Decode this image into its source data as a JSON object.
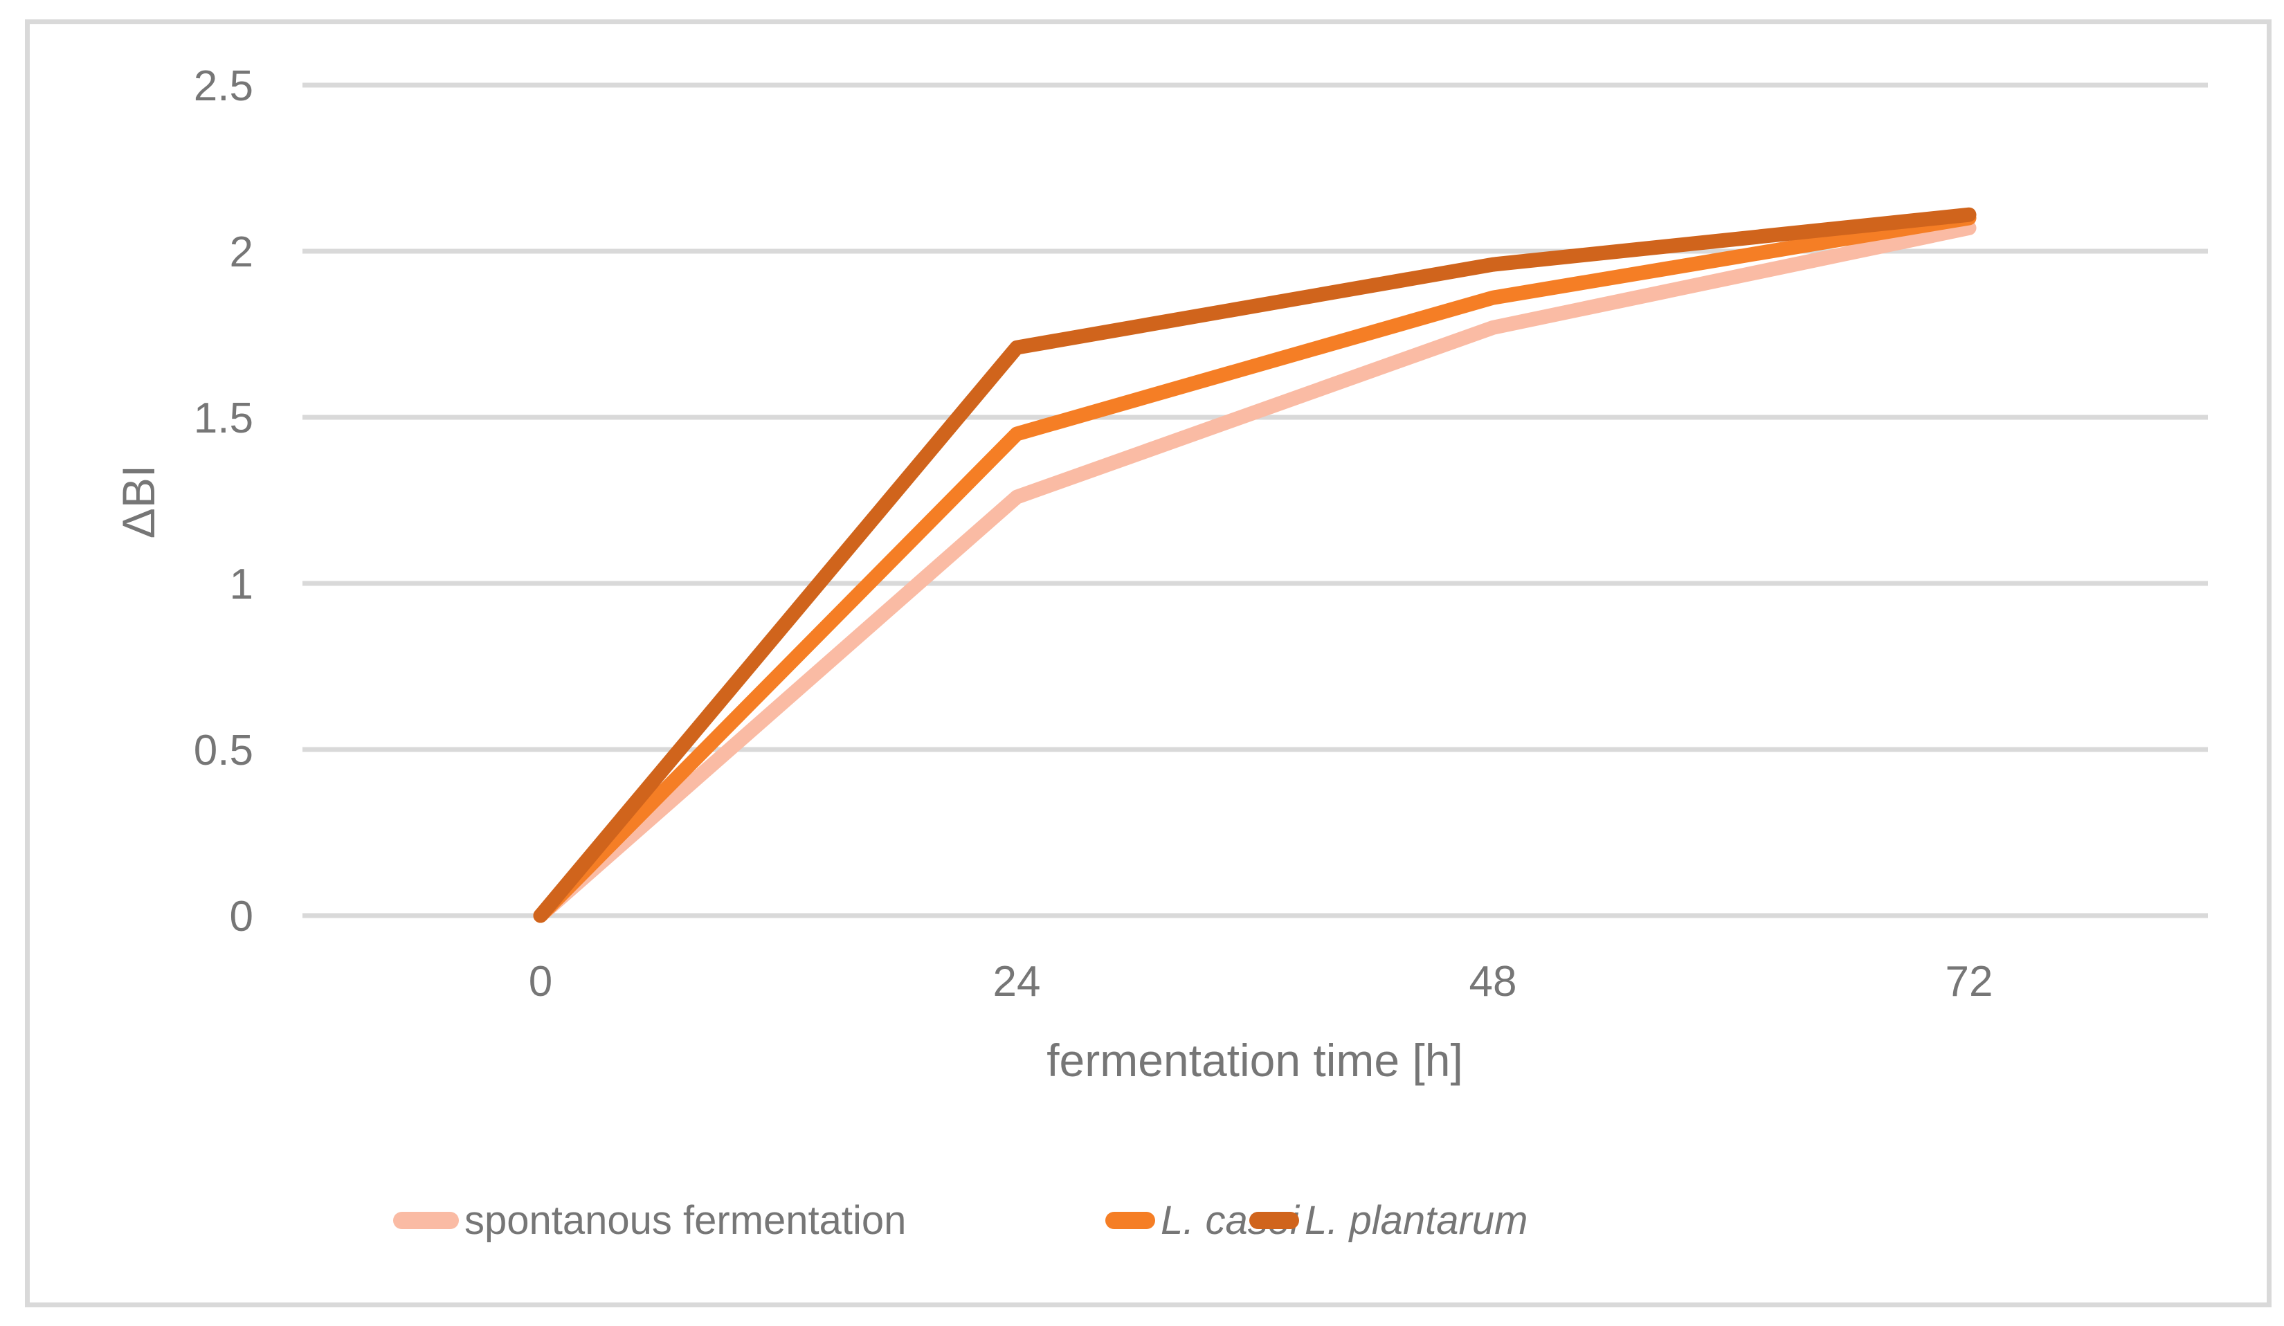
{
  "chart_data": {
    "type": "line",
    "title": "",
    "xlabel": "fermentation time [h]",
    "ylabel": "ΔBI",
    "x": [
      0,
      24,
      48,
      72
    ],
    "x_tick_labels": [
      "0",
      "24",
      "48",
      "72"
    ],
    "y_ticks": [
      0,
      0.5,
      1,
      1.5,
      2,
      2.5
    ],
    "y_tick_labels": [
      "0",
      "0.5",
      "1",
      "1.5",
      "2",
      "2.5"
    ],
    "ylim": [
      0,
      2.5
    ],
    "grid": "horizontal",
    "legend_position": "bottom",
    "series": [
      {
        "name": "spontanous fermentation",
        "color": "#FABBA4",
        "italic": false,
        "values": [
          0,
          1.26,
          1.77,
          2.07
        ]
      },
      {
        "name": "L. casei",
        "color": "#F57E25",
        "italic": true,
        "values": [
          0,
          1.45,
          1.86,
          2.1
        ]
      },
      {
        "name": "L. plantarum",
        "color": "#D0641C",
        "italic": true,
        "values": [
          0,
          1.71,
          1.96,
          2.11
        ]
      }
    ]
  },
  "colors": {
    "background": "#FFFFFF",
    "frame_border": "#D9D9D9",
    "gridline": "#D9D9D9",
    "axis_text": "#767676"
  }
}
